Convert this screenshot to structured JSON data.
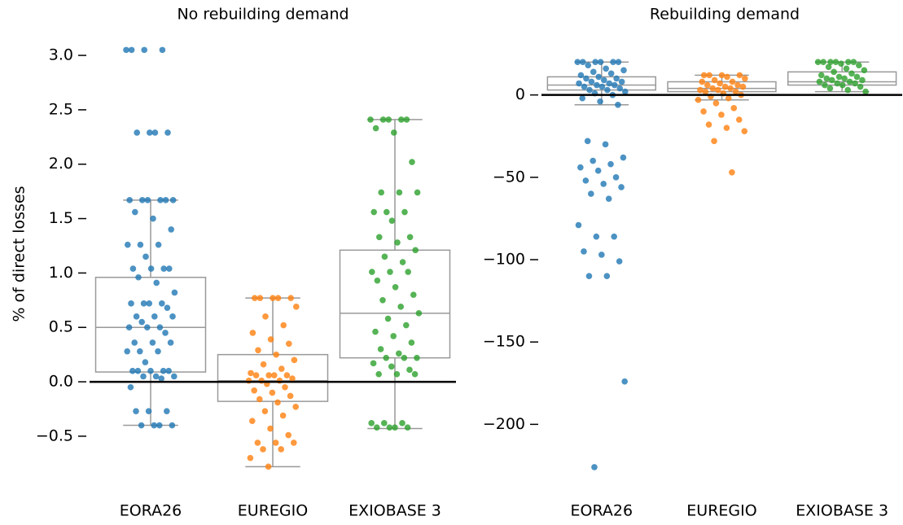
{
  "chart_data": [
    {
      "type": "box",
      "title": "No rebuilding demand",
      "ylabel": "% of direct losses",
      "categories": [
        "EORA26",
        "EUREGIO",
        "EXIOBASE 3"
      ],
      "colors": [
        "#1f77b4",
        "#ff7f0e",
        "#2ca02c"
      ],
      "box_color": "#999999",
      "ylim": [
        -0.8,
        3.15
      ],
      "yticks": [
        {
          "value": -0.5,
          "label": "−0.5"
        },
        {
          "value": 0,
          "label": "0.0"
        },
        {
          "value": 0.5,
          "label": "0.5"
        },
        {
          "value": 1,
          "label": "1.0"
        },
        {
          "value": 1.5,
          "label": "1.5"
        },
        {
          "value": 2,
          "label": "2.0"
        },
        {
          "value": 2.5,
          "label": "2.5"
        },
        {
          "value": 3,
          "label": "3.0"
        }
      ],
      "boxes": [
        {
          "whislo": -0.4,
          "q1": 0.09,
          "med": 0.5,
          "q3": 0.96,
          "whishi": 1.67
        },
        {
          "whislo": -0.78,
          "q1": -0.18,
          "med": 0.01,
          "q3": 0.25,
          "whishi": 0.77
        },
        {
          "whislo": -0.43,
          "q1": 0.22,
          "med": 0.63,
          "q3": 1.21,
          "whishi": 2.41
        }
      ],
      "points": [
        [
          3.05,
          3.05,
          3.05,
          3.05,
          2.29,
          2.29,
          2.29,
          2.29,
          1.67,
          1.67,
          1.67,
          1.67,
          1.67,
          1.67,
          1.56,
          1.5,
          1.4,
          1.26,
          1.26,
          1.26,
          1.15,
          1.04,
          1.04,
          1.04,
          1.04,
          0.96,
          0.91,
          0.82,
          0.72,
          0.72,
          0.72,
          0.72,
          0.68,
          0.6,
          0.6,
          0.6,
          0.55,
          0.5,
          0.5,
          0.5,
          0.45,
          0.36,
          0.36,
          0.36,
          0.28,
          0.28,
          0.28,
          0.18,
          0.1,
          0.1,
          0.1,
          0.1,
          0.1,
          0.05,
          0.05,
          0.05,
          0.03,
          -0.05,
          -0.27,
          -0.27,
          -0.27,
          -0.4,
          -0.4,
          -0.4,
          -0.4
        ],
        [
          0.77,
          0.77,
          0.77,
          0.77,
          0.77,
          0.69,
          0.6,
          0.52,
          0.45,
          0.39,
          0.35,
          0.29,
          0.25,
          0.2,
          0.16,
          0.12,
          0.08,
          0.06,
          0.06,
          0.06,
          0.06,
          0.03,
          0.01,
          0.01,
          0.01,
          -0.02,
          -0.05,
          -0.08,
          -0.1,
          -0.13,
          -0.16,
          -0.19,
          -0.23,
          -0.27,
          -0.31,
          -0.36,
          -0.43,
          -0.49,
          -0.56,
          -0.56,
          -0.56,
          -0.62,
          -0.62,
          -0.7,
          -0.78
        ],
        [
          2.41,
          2.41,
          2.41,
          2.41,
          2.41,
          2.33,
          2.29,
          2.02,
          1.74,
          1.74,
          1.74,
          1.56,
          1.56,
          1.56,
          1.48,
          1.33,
          1.33,
          1.28,
          1.21,
          1.15,
          1.1,
          1.01,
          1.01,
          1.01,
          0.93,
          0.87,
          0.8,
          0.75,
          0.69,
          0.63,
          0.58,
          0.52,
          0.46,
          0.42,
          0.36,
          0.3,
          0.26,
          0.22,
          0.22,
          0.22,
          0.17,
          0.14,
          0.11,
          0.07,
          0.07,
          0.07,
          -0.38,
          -0.38,
          -0.38,
          -0.42,
          -0.42,
          -0.42,
          -0.42
        ]
      ]
    },
    {
      "type": "box",
      "title": "Rebuilding demand",
      "categories": [
        "EORA26",
        "EUREGIO",
        "EXIOBASE 3"
      ],
      "colors": [
        "#1f77b4",
        "#ff7f0e",
        "#2ca02c"
      ],
      "box_color": "#999999",
      "ylim": [
        -228,
        28
      ],
      "yticks": [
        {
          "value": -200,
          "label": "−200"
        },
        {
          "value": -150,
          "label": "−150"
        },
        {
          "value": -100,
          "label": "−100"
        },
        {
          "value": -50,
          "label": "−50"
        },
        0
      ],
      "boxes": [
        {
          "whislo": -6,
          "q1": 3,
          "med": 6,
          "q3": 11,
          "whishi": 20
        },
        {
          "whislo": -3,
          "q1": 2,
          "med": 4,
          "q3": 8,
          "whishi": 12
        },
        {
          "whislo": 2,
          "q1": 6,
          "med": 8,
          "q3": 14,
          "whishi": 20
        }
      ],
      "points": [
        [
          20,
          20,
          20,
          20,
          20,
          20,
          18,
          16,
          15,
          14,
          13,
          12,
          11,
          10,
          10,
          9,
          8,
          8,
          7,
          7,
          6,
          6,
          5,
          5,
          4,
          3,
          3,
          2,
          1,
          0,
          -2,
          -4,
          -6,
          -28,
          -30,
          -38,
          -40,
          -42,
          -44,
          -46,
          -50,
          -52,
          -54,
          -56,
          -60,
          -63,
          -79,
          -86,
          -86,
          -95,
          -97,
          -101,
          -110,
          -110,
          -174,
          -226
        ],
        [
          12,
          12,
          12,
          12,
          11,
          10,
          9,
          8,
          8,
          7,
          6,
          6,
          5,
          5,
          4,
          4,
          3,
          3,
          2,
          2,
          1,
          0,
          -1,
          -2,
          -3,
          -5,
          -8,
          -10,
          -12,
          -15,
          -18,
          -20,
          -22,
          -28,
          -47
        ],
        [
          20,
          20,
          20,
          20,
          20,
          20,
          19,
          18,
          17,
          16,
          15,
          14,
          13,
          12,
          11,
          11,
          10,
          10,
          9,
          9,
          8,
          8,
          7,
          7,
          6,
          6,
          5,
          4,
          3,
          2
        ]
      ]
    }
  ]
}
